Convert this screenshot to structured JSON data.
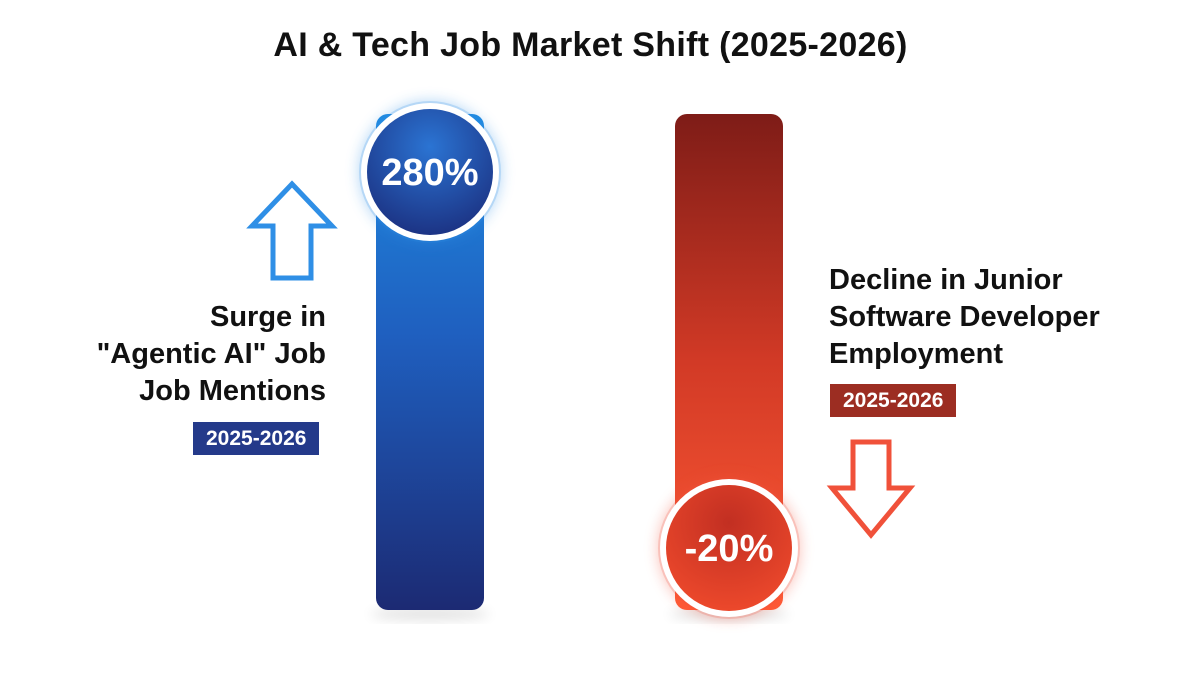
{
  "title": "AI & Tech Job Market Shift (2025-2026)",
  "chart_data": {
    "type": "bar",
    "title": "AI & Tech Job Market Shift (2025-2026)",
    "categories": [
      "Surge in \"Agentic AI\" Job Job Mentions",
      "Decline in Junior Software Developer Employment"
    ],
    "values": [
      280,
      -20
    ],
    "value_labels": [
      "280%",
      "-20%"
    ],
    "unit": "%",
    "period": "2025-2026",
    "directions": [
      "up",
      "down"
    ],
    "colors": {
      "increase_top": "#1f8ae0",
      "increase_bottom": "#1c2a73",
      "decrease_top": "#7e1c17",
      "decrease_bottom": "#ff5a35",
      "increase_badge": "#243a8a",
      "decrease_badge": "#9c2d22",
      "up_arrow": "#2f8fe6",
      "down_arrow": "#f0513a"
    },
    "icons": [
      "arrow-up-icon",
      "arrow-down-icon"
    ],
    "grid": false,
    "legend": "none"
  },
  "labels": {
    "left": {
      "lines": [
        "Surge in",
        "\"Agentic AI\" Job",
        "Job Mentions"
      ],
      "badge": "2025-2026"
    },
    "right": {
      "lines": [
        "Decline in Junior",
        "Software Developer",
        "Employment"
      ],
      "badge": "2025-2026"
    }
  }
}
